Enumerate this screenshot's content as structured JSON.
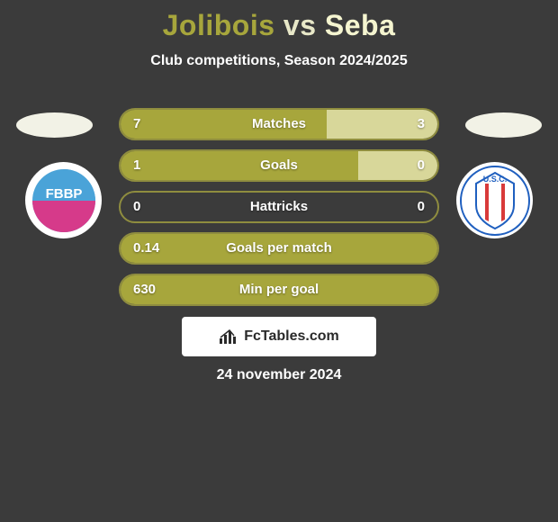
{
  "title": {
    "player1": "Jolibois",
    "vs": "vs",
    "player2": "Seba",
    "player1_color": "#a7a63c",
    "player2_color": "#f5f5d0",
    "vs_color": "#e8e8c8",
    "fontsize": 32
  },
  "subtitle": "Club competitions, Season 2024/2025",
  "subtitle_color": "#ffffff",
  "background_color": "#3b3b3b",
  "badges": {
    "left_color": "#f2f2e6",
    "right_color": "#f2f2e6"
  },
  "clubs": {
    "left": {
      "name": "FBBP",
      "bg": "#ffffff",
      "inner_top": "#4aa3d8",
      "inner_bottom": "#d63a8a",
      "text": "FBBP",
      "text_color": "#ffffff"
    },
    "right": {
      "name": "USC",
      "bg": "#ffffff",
      "stripe1": "#1f5fbf",
      "stripe2": "#d83a3a",
      "text": "U.S.C.",
      "text_color": "#1f5fbf"
    }
  },
  "bars": {
    "border_color": "#8f8d3f",
    "fill_left_color": "#a7a63c",
    "fill_right_color": "#d8d79a",
    "text_color": "#ffffff",
    "label_fontsize": 15,
    "rows": [
      {
        "label": "Matches",
        "left": "7",
        "right": "3",
        "left_pct": 65,
        "right_pct": 35
      },
      {
        "label": "Goals",
        "left": "1",
        "right": "0",
        "left_pct": 75,
        "right_pct": 25
      },
      {
        "label": "Hattricks",
        "left": "0",
        "right": "0",
        "left_pct": 0,
        "right_pct": 0
      },
      {
        "label": "Goals per match",
        "left": "0.14",
        "right": "",
        "left_pct": 100,
        "right_pct": 0
      },
      {
        "label": "Min per goal",
        "left": "630",
        "right": "",
        "left_pct": 100,
        "right_pct": 0
      }
    ]
  },
  "branding": "FcTables.com",
  "date": "24 november 2024"
}
